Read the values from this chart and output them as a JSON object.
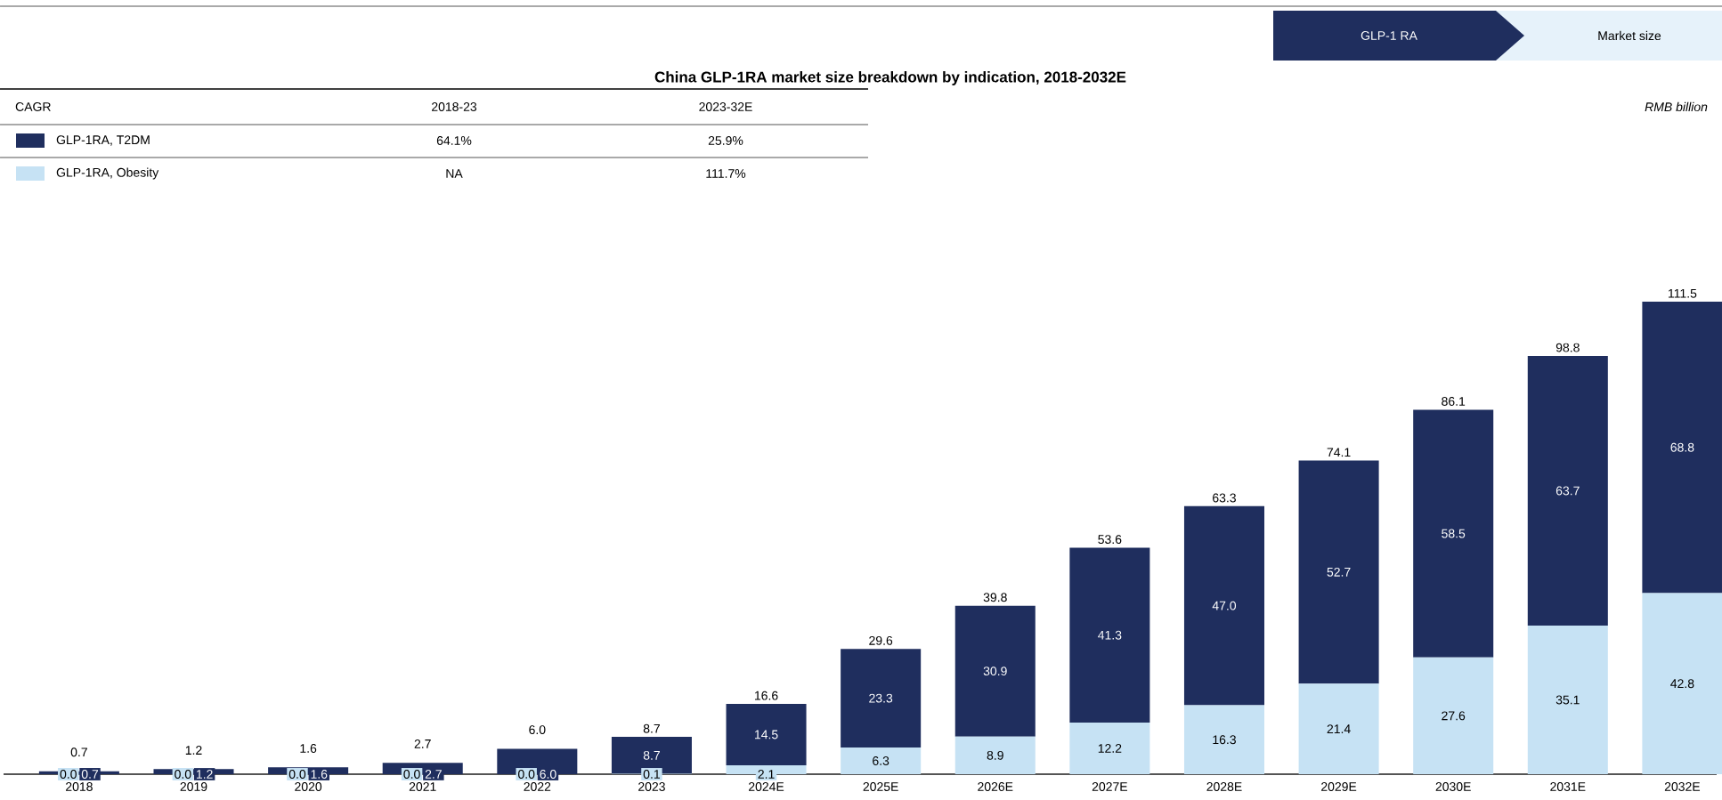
{
  "chart_data": {
    "type": "bar",
    "stacked": true,
    "title": "China GLP-1RA market size breakdown by indication, 2018-2032E",
    "categories": [
      "2018",
      "2019",
      "2020",
      "2021",
      "2022",
      "2023",
      "2024E",
      "2025E",
      "2026E",
      "2027E",
      "2028E",
      "2029E",
      "2030E",
      "2031E",
      "2032E"
    ],
    "series": [
      {
        "name": "GLP-1RA, Obesity",
        "color": "#c6e2f4",
        "values": [
          0.0,
          0.0,
          0.0,
          0.0,
          0.0,
          0.1,
          2.1,
          6.3,
          8.9,
          12.2,
          16.3,
          21.4,
          27.6,
          35.1,
          42.8
        ],
        "value_labels": [
          "0.0",
          "0.0",
          "0.0",
          "0.0",
          "0.0",
          "0.1",
          "2.1",
          "6.3",
          "8.9",
          "12.2",
          "16.3",
          "21.4",
          "27.6",
          "35.1",
          "42.8"
        ]
      },
      {
        "name": "GLP-1RA, T2DM",
        "color": "#1f2e5e",
        "values": [
          0.7,
          1.2,
          1.6,
          2.7,
          6.0,
          8.7,
          14.5,
          23.3,
          30.9,
          41.3,
          47.0,
          52.7,
          58.5,
          63.7,
          68.8
        ],
        "value_labels": [
          "0.7",
          "1.2",
          "1.6",
          "2.7",
          "6.0",
          "8.7",
          "14.5",
          "23.3",
          "30.9",
          "41.3",
          "47.0",
          "52.7",
          "58.5",
          "63.7",
          "68.8"
        ]
      }
    ],
    "totals": [
      "0.7",
      "1.2",
      "1.6",
      "2.7",
      "6.0",
      "8.7",
      "16.6",
      "29.6",
      "39.8",
      "53.6",
      "63.3",
      "74.1",
      "86.1",
      "98.8",
      "111.5"
    ],
    "legend": "top left",
    "annotations": [
      "GLP-1 RA",
      "Market size",
      "CAGR",
      "2018-23",
      "2023-32E",
      "64.1%",
      "25.9%",
      "NA",
      "111.7%",
      "RMB billion"
    ]
  }
}
